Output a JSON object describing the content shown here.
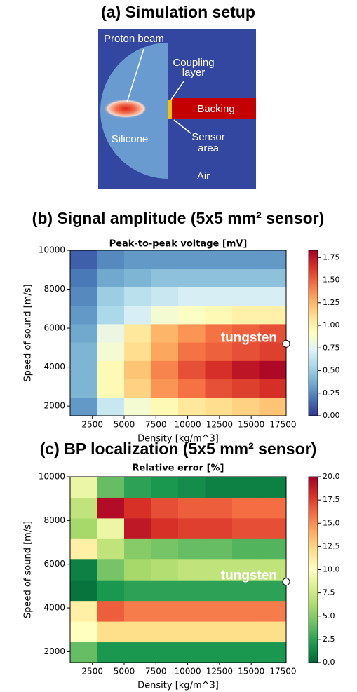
{
  "panel_a": {
    "title": "(a) Simulation setup",
    "proton_beam": "Proton beam",
    "coupling_layer": [
      "Coupling",
      "layer"
    ],
    "backing": "Backing",
    "silicone": "Silicone",
    "sensor_area": [
      "Sensor",
      "area"
    ],
    "air": "Air"
  },
  "chart_data": [
    {
      "type": "heatmap",
      "title": "(b) Signal amplitude (5x5 mm² sensor)",
      "subtitle": "Peak-to-peak voltage [mV]",
      "x_label": "Density [kg/m^3]",
      "y_label": "Speed of sound [m/s]",
      "xlim": [
        750,
        17750
      ],
      "ylim": [
        1500,
        10000
      ],
      "xticks": [
        2500,
        5000,
        7500,
        10000,
        12500,
        15000,
        17500
      ],
      "yticks": [
        2000,
        4000,
        6000,
        8000,
        10000
      ],
      "z": [
        [
          0.3,
          0.65,
          0.85,
          0.95,
          1.05,
          1.1,
          1.15,
          1.2
        ],
        [
          0.4,
          0.95,
          1.15,
          1.35,
          1.45,
          1.55,
          1.6,
          1.65
        ],
        [
          0.4,
          0.95,
          1.2,
          1.4,
          1.55,
          1.65,
          1.75,
          1.8
        ],
        [
          0.4,
          0.85,
          1.1,
          1.3,
          1.45,
          1.5,
          1.55,
          1.6
        ],
        [
          0.35,
          0.8,
          1.05,
          1.25,
          1.35,
          1.45,
          1.5,
          1.55
        ],
        [
          0.3,
          0.55,
          0.7,
          0.85,
          0.9,
          0.95,
          1.0,
          1.0
        ],
        [
          0.25,
          0.5,
          0.6,
          0.65,
          0.7,
          0.7,
          0.7,
          0.7
        ],
        [
          0.2,
          0.35,
          0.4,
          0.45,
          0.45,
          0.45,
          0.45,
          0.45
        ],
        [
          0.12,
          0.25,
          0.3,
          0.3,
          0.3,
          0.3,
          0.3,
          0.3
        ]
      ],
      "clim": [
        0,
        1.83
      ],
      "cticks": [
        {
          "value": 0,
          "label": "0.00"
        },
        0.25,
        {
          "value": 0.5,
          "label": "0.50"
        },
        0.75,
        {
          "value": 1,
          "label": "1.00"
        },
        1.25,
        {
          "value": 1.5,
          "label": "1.50"
        },
        1.75
      ],
      "colormap": [
        "#313695",
        "#4575b4",
        "#74add1",
        "#abd9e9",
        "#e0f3f8",
        "#ffffbf",
        "#fee090",
        "#fdae61",
        "#f46d43",
        "#d73027",
        "#a50026"
      ],
      "marker": {
        "x": 17750,
        "y": 5200,
        "label": "tungsten"
      }
    },
    {
      "type": "heatmap",
      "title": "(c) BP localization (5x5 mm² sensor)",
      "subtitle": "Relative error [%]",
      "x_label": "Density [kg/m^3]",
      "y_label": "Speed of sound [m/s]",
      "xlim": [
        750,
        17750
      ],
      "ylim": [
        1500,
        10000
      ],
      "xticks": [
        2500,
        5000,
        7500,
        10000,
        12500,
        15000,
        17500
      ],
      "yticks": [
        2000,
        4000,
        6000,
        8000,
        10000
      ],
      "z": [
        [
          4,
          2,
          2,
          2,
          2,
          2,
          2,
          2
        ],
        [
          10,
          12,
          12,
          12,
          12,
          12,
          12,
          12
        ],
        [
          11,
          16.5,
          15.5,
          15.5,
          15.5,
          15.5,
          15.5,
          15.5
        ],
        [
          0.5,
          2,
          2.5,
          2.5,
          2.5,
          2.5,
          2.5,
          2.5
        ],
        [
          1,
          4.5,
          6,
          6.5,
          7,
          7,
          7,
          7
        ],
        [
          11,
          7,
          5,
          4.5,
          4,
          4,
          3.5,
          3.5
        ],
        [
          6,
          9,
          19,
          18,
          17.5,
          17.5,
          17,
          17
        ],
        [
          7,
          19.5,
          18,
          17,
          16.5,
          16.5,
          16,
          16
        ],
        [
          9,
          4,
          2.5,
          2,
          1.5,
          1,
          1,
          1
        ]
      ],
      "clim": [
        0,
        20
      ],
      "cticks": [
        {
          "value": 0,
          "label": "0.0"
        },
        2.5,
        {
          "value": 5,
          "label": "5.0"
        },
        7.5,
        {
          "value": 10,
          "label": "10.0"
        },
        12.5,
        {
          "value": 15,
          "label": "15.0"
        },
        17.5,
        {
          "value": 20,
          "label": "20.0"
        }
      ],
      "colormap": [
        "#006837",
        "#1a9850",
        "#66bd63",
        "#a6d96a",
        "#d9ef8b",
        "#ffffbf",
        "#fee08b",
        "#fdae61",
        "#f46d43",
        "#d73027",
        "#a50026"
      ],
      "marker": {
        "x": 17750,
        "y": 5200,
        "label": "tungsten"
      }
    }
  ]
}
